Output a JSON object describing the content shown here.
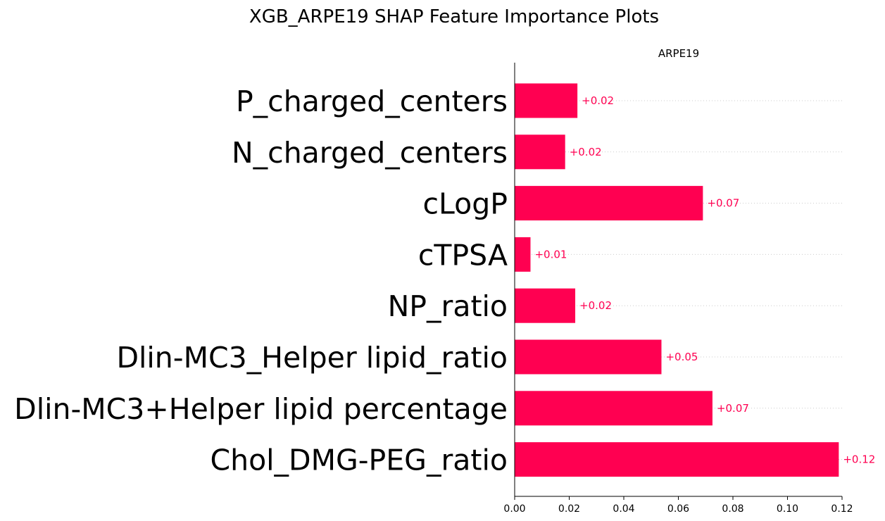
{
  "figure": {
    "title": "XGB_ARPE19 SHAP Feature Importance Plots"
  },
  "chart_data": {
    "type": "bar",
    "orientation": "horizontal",
    "title": "ARPE19",
    "xlabel": "",
    "ylabel": "",
    "xlim": [
      0,
      0.12
    ],
    "xticks": [
      "0.00",
      "0.02",
      "0.04",
      "0.06",
      "0.08",
      "0.10",
      "0.12"
    ],
    "grid": "dotted horizontal guide lines per bar",
    "bar_color": "#ff0051",
    "categories": [
      "P_charged_centers",
      "N_charged_centers",
      "cLogP",
      "cTPSA",
      "NP_ratio",
      "Dlin-MC3_Helper lipid_ratio",
      "Dlin-MC3+Helper lipid percentage",
      "Chol_DMG-PEG_ratio"
    ],
    "values": [
      0.023,
      0.0185,
      0.069,
      0.0058,
      0.0222,
      0.0538,
      0.0725,
      0.1188
    ],
    "value_labels": [
      "+0.02",
      "+0.02",
      "+0.07",
      "+0.01",
      "+0.02",
      "+0.05",
      "+0.07",
      "+0.12"
    ]
  }
}
